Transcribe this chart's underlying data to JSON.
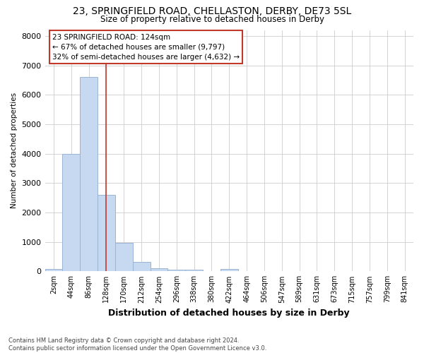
{
  "title1": "23, SPRINGFIELD ROAD, CHELLASTON, DERBY, DE73 5SL",
  "title2": "Size of property relative to detached houses in Derby",
  "xlabel": "Distribution of detached houses by size in Derby",
  "ylabel": "Number of detached properties",
  "bar_labels": [
    "2sqm",
    "44sqm",
    "86sqm",
    "128sqm",
    "170sqm",
    "212sqm",
    "254sqm",
    "296sqm",
    "338sqm",
    "380sqm",
    "422sqm",
    "464sqm",
    "506sqm",
    "547sqm",
    "589sqm",
    "631sqm",
    "673sqm",
    "715sqm",
    "757sqm",
    "799sqm",
    "841sqm"
  ],
  "bar_values": [
    70,
    3980,
    6600,
    2600,
    960,
    330,
    110,
    65,
    50,
    0,
    90,
    0,
    0,
    0,
    0,
    0,
    0,
    0,
    0,
    0,
    0
  ],
  "bar_color": "#c6d9f1",
  "bar_edge_color": "#9ab4d4",
  "vline_color": "#c0392b",
  "vline_x": 3.0,
  "annotation_line1": "23 SPRINGFIELD ROAD: 124sqm",
  "annotation_line2": "← 67% of detached houses are smaller (9,797)",
  "annotation_line3": "32% of semi-detached houses are larger (4,632) →",
  "annotation_box_color": "white",
  "annotation_box_edge_color": "#c0392b",
  "ylim": [
    0,
    8200
  ],
  "yticks": [
    0,
    1000,
    2000,
    3000,
    4000,
    5000,
    6000,
    7000,
    8000
  ],
  "grid_color": "#cccccc",
  "footnote": "Contains HM Land Registry data © Crown copyright and database right 2024.\nContains public sector information licensed under the Open Government Licence v3.0.",
  "bg_color": "#ffffff"
}
